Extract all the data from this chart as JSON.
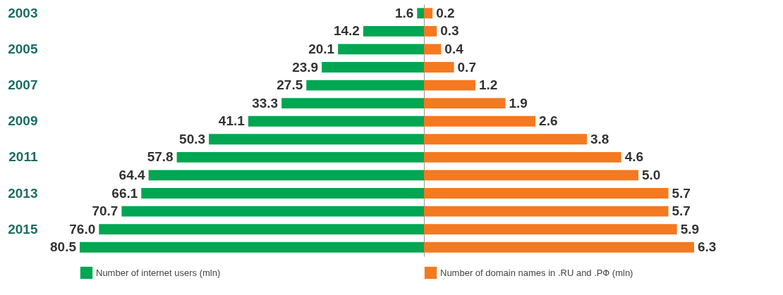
{
  "chart_data": [
    {
      "type": "bar",
      "orientation": "horizontal",
      "categories": [
        "2003",
        null,
        "2005",
        null,
        "2007",
        null,
        "2009",
        null,
        "2011",
        null,
        "2013",
        null,
        "2015",
        null
      ],
      "tick_labels": "y",
      "legend": "bottom",
      "series": [
        {
          "name": "Number of internet users (mln)",
          "color": "#00a651",
          "values": [
            1.6,
            14.2,
            20.1,
            23.9,
            27.5,
            33.3,
            41.1,
            50.3,
            57.8,
            64.4,
            66.1,
            70.7,
            76.0,
            80.5
          ],
          "value_labels": [
            "1.6",
            "14.2",
            "20.1",
            "23.9",
            "27.5",
            "33.3",
            "41.1",
            "50.3",
            "57.8",
            "64.4",
            "66.1",
            "70.7",
            "76.0",
            "80.5"
          ]
        }
      ]
    },
    {
      "type": "bar",
      "orientation": "horizontal",
      "categories": [
        "2003",
        null,
        "2005",
        null,
        "2007",
        null,
        "2009",
        null,
        "2011",
        null,
        "2013",
        null,
        "2015",
        null
      ],
      "tick_labels": false,
      "legend": "bottom",
      "series": [
        {
          "name": "Number of domain names in .RU and .РФ (mln)",
          "color": "#f47920",
          "values": [
            0.2,
            0.3,
            0.4,
            0.7,
            1.2,
            1.9,
            2.6,
            3.8,
            4.6,
            5.0,
            5.7,
            5.7,
            5.9,
            6.3
          ],
          "value_labels": [
            "0.2",
            "0.3",
            "0.4",
            "0.7",
            "1.2",
            "1.9",
            "2.6",
            "3.8",
            "4.6",
            "5.0",
            "5.7",
            "5.7",
            "5.9",
            "6.3"
          ]
        }
      ]
    }
  ]
}
